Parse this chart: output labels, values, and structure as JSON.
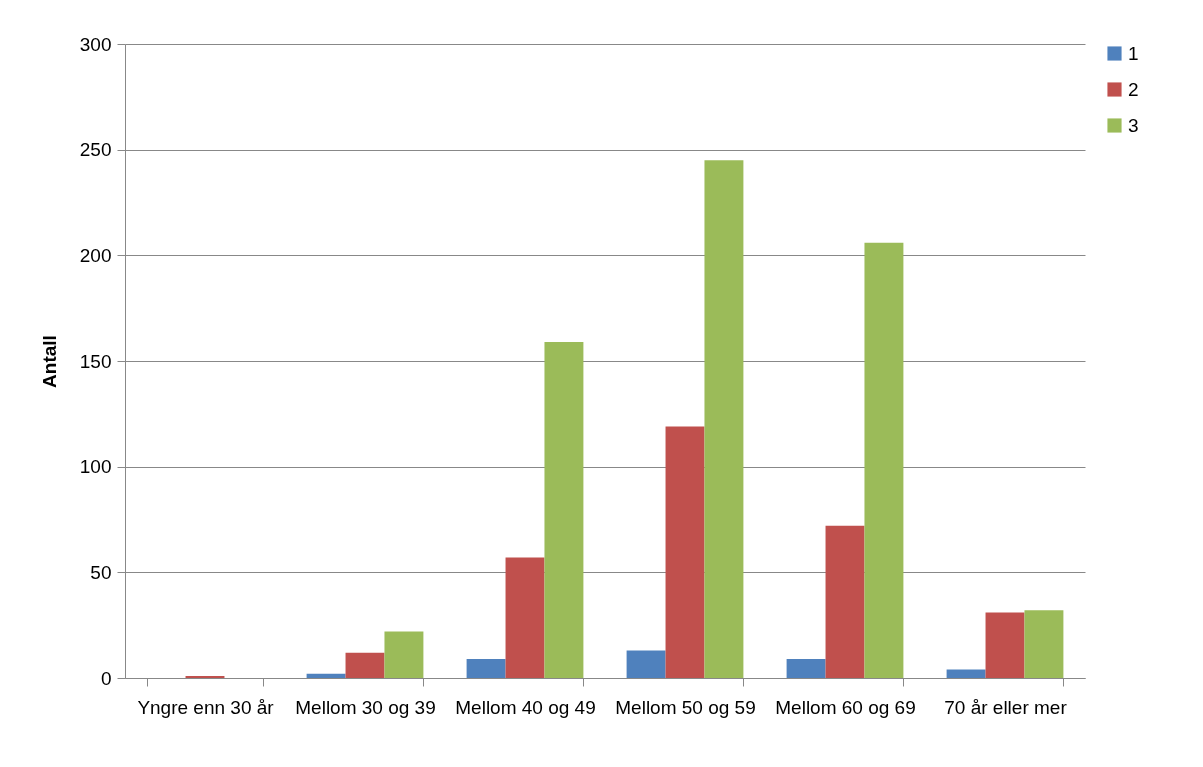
{
  "chart_data": {
    "type": "bar",
    "ylabel": "Antall",
    "categories": [
      "Yngre enn 30 år",
      "Mellom 30 og 39",
      "Mellom 40 og 49",
      "Mellom 50 og 59",
      "Mellom 60 og 69",
      "70 år eller mer"
    ],
    "series": [
      {
        "name": "1",
        "color": "#4f81bd",
        "values": [
          0,
          2,
          9,
          13,
          9,
          4
        ]
      },
      {
        "name": "2",
        "color": "#c0504d",
        "values": [
          1,
          12,
          57,
          119,
          72,
          31
        ]
      },
      {
        "name": "3",
        "color": "#9bbb59",
        "values": [
          0,
          22,
          159,
          245,
          206,
          32
        ]
      }
    ],
    "ylim": [
      0,
      300
    ],
    "yticks": [
      0,
      50,
      100,
      150,
      200,
      250,
      300
    ],
    "grid": "y",
    "legend": "right"
  }
}
